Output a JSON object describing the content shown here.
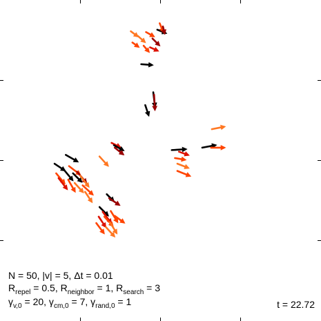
{
  "params": {
    "line1": "N = 50, |v| = 5, Δt = 0.01",
    "r_repel": "0.5",
    "r_neighbor": "1",
    "r_search": "3",
    "gamma_v0": "20",
    "gamma_cm0": "7",
    "gamma_rand0": "1"
  },
  "time": "t = 22.72",
  "colors": {
    "black": "#000000",
    "dark_red": "#990000",
    "red": "#dd1100",
    "orange_red": "#ff4400",
    "orange": "#ff7722"
  },
  "chart_data": {
    "type": "quiver",
    "title": "",
    "xlabel": "",
    "ylabel": "",
    "xlim": [
      0,
      4
    ],
    "ylim": [
      0,
      4
    ],
    "grid": false,
    "agents": [
      {
        "x": 1.63,
        "y": 3.61,
        "dx": 0.08,
        "dy": -0.06,
        "c": "orange"
      },
      {
        "x": 1.65,
        "y": 3.47,
        "dx": 0.07,
        "dy": -0.05,
        "c": "orange_red"
      },
      {
        "x": 1.72,
        "y": 3.55,
        "dx": 0.08,
        "dy": -0.07,
        "c": "orange"
      },
      {
        "x": 1.79,
        "y": 3.43,
        "dx": 0.06,
        "dy": -0.07,
        "c": "orange_red"
      },
      {
        "x": 1.82,
        "y": 3.6,
        "dx": 0.09,
        "dy": -0.05,
        "c": "orange_red"
      },
      {
        "x": 1.9,
        "y": 3.52,
        "dx": 0.08,
        "dy": -0.08,
        "c": "dark_red"
      },
      {
        "x": 1.87,
        "y": 3.41,
        "dx": 0.09,
        "dy": -0.04,
        "c": "red"
      },
      {
        "x": 1.96,
        "y": 3.63,
        "dx": 0.1,
        "dy": -0.04,
        "c": "black"
      },
      {
        "x": 1.99,
        "y": 3.71,
        "dx": 0.04,
        "dy": -0.1,
        "c": "orange_red"
      },
      {
        "x": 2.03,
        "y": 3.67,
        "dx": 0.02,
        "dy": -0.08,
        "c": "dark_red"
      },
      {
        "x": 1.76,
        "y": 3.2,
        "dx": 0.13,
        "dy": -0.01,
        "c": "black"
      },
      {
        "x": 1.91,
        "y": 2.85,
        "dx": 0.02,
        "dy": -0.17,
        "c": "black"
      },
      {
        "x": 1.92,
        "y": 2.82,
        "dx": 0.01,
        "dy": -0.18,
        "c": "dark_red"
      },
      {
        "x": 1.81,
        "y": 2.69,
        "dx": 0.04,
        "dy": -0.12,
        "c": "black"
      },
      {
        "x": 1.39,
        "y": 2.22,
        "dx": 0.1,
        "dy": -0.05,
        "c": "red"
      },
      {
        "x": 1.42,
        "y": 2.19,
        "dx": 0.11,
        "dy": -0.06,
        "c": "black"
      },
      {
        "x": 1.43,
        "y": 2.16,
        "dx": 0.1,
        "dy": -0.08,
        "c": "dark_red"
      },
      {
        "x": 1.24,
        "y": 2.05,
        "dx": 0.1,
        "dy": -0.11,
        "c": "orange"
      },
      {
        "x": 0.82,
        "y": 2.07,
        "dx": 0.14,
        "dy": -0.08,
        "c": "black"
      },
      {
        "x": 2.14,
        "y": 2.13,
        "dx": 0.17,
        "dy": 0.01,
        "c": "black"
      },
      {
        "x": 2.23,
        "y": 2.11,
        "dx": 0.11,
        "dy": -0.04,
        "c": "red"
      },
      {
        "x": 2.52,
        "y": 2.16,
        "dx": 0.16,
        "dy": 0.03,
        "c": "black"
      },
      {
        "x": 2.63,
        "y": 2.16,
        "dx": 0.16,
        "dy": 0.0,
        "c": "orange_red"
      },
      {
        "x": 2.64,
        "y": 2.39,
        "dx": 0.15,
        "dy": 0.03,
        "c": "orange"
      },
      {
        "x": 2.18,
        "y": 2.03,
        "dx": 0.12,
        "dy": -0.02,
        "c": "orange_red"
      },
      {
        "x": 2.21,
        "y": 1.96,
        "dx": 0.13,
        "dy": -0.05,
        "c": "orange"
      },
      {
        "x": 2.21,
        "y": 1.87,
        "dx": 0.15,
        "dy": -0.06,
        "c": "orange_red"
      },
      {
        "x": 0.68,
        "y": 1.96,
        "dx": 0.12,
        "dy": -0.08,
        "c": "black"
      },
      {
        "x": 0.7,
        "y": 1.84,
        "dx": 0.1,
        "dy": -0.12,
        "c": "orange_red"
      },
      {
        "x": 0.73,
        "y": 1.78,
        "dx": 0.1,
        "dy": -0.13,
        "c": "red"
      },
      {
        "x": 0.8,
        "y": 1.88,
        "dx": 0.1,
        "dy": -0.12,
        "c": "black"
      },
      {
        "x": 0.86,
        "y": 1.93,
        "dx": 0.13,
        "dy": -0.1,
        "c": "orange_red"
      },
      {
        "x": 0.91,
        "y": 1.84,
        "dx": 0.1,
        "dy": -0.1,
        "c": "black"
      },
      {
        "x": 0.96,
        "y": 1.86,
        "dx": 0.11,
        "dy": -0.13,
        "c": "dark_red"
      },
      {
        "x": 0.85,
        "y": 1.76,
        "dx": 0.08,
        "dy": -0.14,
        "c": "orange_red"
      },
      {
        "x": 0.93,
        "y": 1.72,
        "dx": 0.1,
        "dy": -0.11,
        "c": "orange"
      },
      {
        "x": 1.0,
        "y": 1.81,
        "dx": 0.1,
        "dy": -0.13,
        "c": "orange"
      },
      {
        "x": 1.03,
        "y": 1.69,
        "dx": 0.12,
        "dy": -0.11,
        "c": "orange_red"
      },
      {
        "x": 1.06,
        "y": 1.61,
        "dx": 0.08,
        "dy": -0.12,
        "c": "orange"
      },
      {
        "x": 1.33,
        "y": 1.58,
        "dx": 0.08,
        "dy": -0.08,
        "c": "black"
      },
      {
        "x": 1.36,
        "y": 1.53,
        "dx": 0.12,
        "dy": -0.08,
        "c": "dark_red"
      },
      {
        "x": 1.24,
        "y": 1.42,
        "dx": 0.1,
        "dy": -0.1,
        "c": "black"
      },
      {
        "x": 1.28,
        "y": 1.36,
        "dx": 0.1,
        "dy": -0.13,
        "c": "red"
      },
      {
        "x": 1.23,
        "y": 1.3,
        "dx": 0.08,
        "dy": -0.12,
        "c": "red"
      },
      {
        "x": 1.3,
        "y": 1.3,
        "dx": 0.1,
        "dy": -0.11,
        "c": "orange_red"
      },
      {
        "x": 1.38,
        "y": 1.37,
        "dx": 0.08,
        "dy": -0.13,
        "c": "orange_red"
      },
      {
        "x": 1.43,
        "y": 1.31,
        "dx": 0.11,
        "dy": -0.08,
        "c": "orange_red"
      },
      {
        "x": 1.37,
        "y": 1.23,
        "dx": 0.08,
        "dy": -0.13,
        "c": "orange"
      },
      {
        "x": 1.2,
        "y": 1.22,
        "dx": 0.09,
        "dy": -0.12,
        "c": "orange_red"
      },
      {
        "x": 1.32,
        "y": 1.17,
        "dx": 0.1,
        "dy": -0.11,
        "c": "orange"
      }
    ]
  }
}
